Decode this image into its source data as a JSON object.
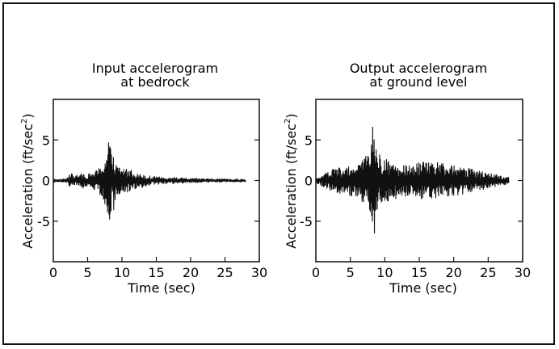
{
  "chart_data": [
    {
      "type": "line",
      "title": [
        "Input accelerogram",
        "at bedrock"
      ],
      "xlabel": "Time  (sec)",
      "ylabel": "Acceleration  (ft/sec",
      "ylabel_sup": "2",
      "ylabel_close": ")",
      "xlim": [
        0,
        30
      ],
      "ylim": [
        -10,
        10
      ],
      "xticks": [
        0,
        5,
        10,
        15,
        20,
        25,
        30
      ],
      "yticks": [
        5,
        0,
        -5
      ],
      "grid": false,
      "series": [
        {
          "values_x": [
            0,
            1,
            2,
            2.5,
            3,
            3.5,
            4,
            4.5,
            5,
            5.5,
            6,
            6.5,
            7,
            7.2,
            7.5,
            7.7,
            7.9,
            8.1,
            8.3,
            8.5,
            8.7,
            9,
            9.3,
            9.6,
            10,
            10.5,
            11,
            11.5,
            12,
            12.5,
            13,
            13.5,
            14,
            15,
            16,
            17,
            18,
            19,
            20,
            22,
            24,
            26,
            28
          ],
          "envelope": [
            0.1,
            0.2,
            0.35,
            0.9,
            0.8,
            0.7,
            0.9,
            1.0,
            0.8,
            1.0,
            1.2,
            1.4,
            2.0,
            2.2,
            3.5,
            3.0,
            4.8,
            5.9,
            4.5,
            3.0,
            4.5,
            2.5,
            1.8,
            2.0,
            1.5,
            1.8,
            1.3,
            1.5,
            1.0,
            0.8,
            0.9,
            0.7,
            0.6,
            0.5,
            0.5,
            0.4,
            0.4,
            0.35,
            0.3,
            0.3,
            0.25,
            0.2,
            0.2
          ]
        }
      ]
    },
    {
      "type": "line",
      "title": [
        "Output accelerogram",
        "at ground level"
      ],
      "xlabel": "Time  (sec)",
      "ylabel": "Acceleration  (ft/sec",
      "ylabel_sup": "2",
      "ylabel_close": ")",
      "xlim": [
        0,
        30
      ],
      "ylim": [
        -10,
        10
      ],
      "xticks": [
        0,
        5,
        10,
        15,
        20,
        25,
        30
      ],
      "yticks": [
        5,
        0,
        -5
      ],
      "grid": false,
      "series": [
        {
          "values_x": [
            0,
            0.5,
            1,
            1.5,
            2,
            2.5,
            3,
            3.5,
            4,
            4.5,
            5,
            5.5,
            6,
            6.5,
            7,
            7.5,
            8,
            8.3,
            8.6,
            9,
            9.5,
            10,
            10.5,
            11,
            11.5,
            12,
            13,
            14,
            15,
            16,
            17,
            18,
            19,
            20,
            21,
            22,
            23,
            24,
            25,
            26,
            27,
            28
          ],
          "envelope": [
            0.3,
            0.6,
            0.8,
            1.0,
            1.2,
            1.5,
            1.6,
            1.8,
            1.5,
            1.6,
            2.0,
            1.8,
            2.0,
            2.5,
            2.8,
            4.0,
            5.0,
            8.4,
            6.0,
            3.5,
            3.0,
            2.5,
            2.8,
            2.2,
            2.5,
            2.0,
            2.0,
            1.8,
            2.3,
            2.5,
            2.2,
            2.3,
            2.0,
            2.0,
            1.8,
            1.6,
            1.4,
            1.2,
            1.0,
            0.8,
            0.6,
            0.5
          ]
        }
      ]
    }
  ]
}
